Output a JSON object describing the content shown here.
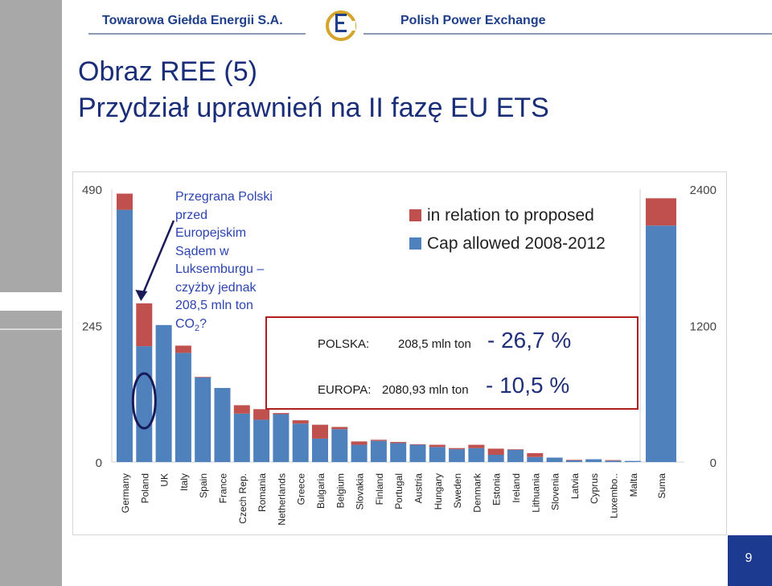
{
  "header": {
    "left": "Towarowa Giełda Energii S.A.",
    "right": "Polish Power Exchange",
    "logo": "tge-logo"
  },
  "title": {
    "line1": "Obraz REE (5)",
    "line2": "Przydział uprawnień na II fazę EU ETS"
  },
  "note": {
    "lines": [
      "Przegrana Polski",
      "przed",
      "Europejskim",
      "Sądem w",
      "Luksemburgu –",
      "czyżby jednak",
      "208,5 mln ton"
    ],
    "last_main": "CO",
    "last_sub": "2",
    "last_tail": "?"
  },
  "box": {
    "polska_label": "POLSKA:",
    "polska_value": "208,5 mln ton",
    "polska_pct": "- 26,7 %",
    "europa_label": "EUROPA:",
    "europa_value": "2080,93 mln ton",
    "europa_pct": "- 10,5 %"
  },
  "page_number": "9",
  "chart_data": [
    {
      "type": "bar",
      "stacked": true,
      "categories": [
        "Germany",
        "Poland",
        "UK",
        "Italy",
        "Spain",
        "France",
        "Czech Rep.",
        "Romania",
        "Netherlands",
        "Greece",
        "Bulgaria",
        "Belgium",
        "Slovakia",
        "Finland",
        "Portugal",
        "Austria",
        "Hungary",
        "Sweden",
        "Denmark",
        "Estonia",
        "Ireland",
        "Lithuania",
        "Slovenia",
        "Latvia",
        "Cyprus",
        "Luxembo..",
        "Malta"
      ],
      "series": [
        {
          "name": "Cap allowed 2008-2012",
          "color": "#4f81bd",
          "values": [
            453,
            208,
            246,
            196,
            152,
            133,
            87,
            76,
            86,
            69,
            42,
            59,
            31,
            38,
            34,
            31,
            27,
            23,
            25,
            13,
            22,
            9,
            8,
            3,
            5,
            2.5,
            2
          ]
        },
        {
          "name": "in relation to proposed",
          "color": "#c0504d",
          "values": [
            29,
            77,
            0,
            13,
            1,
            0,
            15,
            19,
            2,
            6,
            25,
            4,
            6,
            2,
            2,
            1,
            4,
            2,
            6,
            11,
            1,
            7,
            0,
            1,
            0,
            1,
            0
          ]
        }
      ],
      "ylim": [
        0,
        490
      ],
      "yticks": [
        "0",
        "245",
        "490"
      ],
      "legend": "top-right"
    },
    {
      "type": "bar",
      "stacked": true,
      "categories": [
        "Suma"
      ],
      "series": [
        {
          "name": "Cap allowed 2008-2012",
          "color": "#4f81bd",
          "values": [
            2080
          ]
        },
        {
          "name": "in relation to proposed",
          "color": "#c0504d",
          "values": [
            240
          ]
        }
      ],
      "ylim": [
        0,
        2400
      ],
      "yticks": [
        "0",
        "1200",
        "2400"
      ]
    }
  ]
}
